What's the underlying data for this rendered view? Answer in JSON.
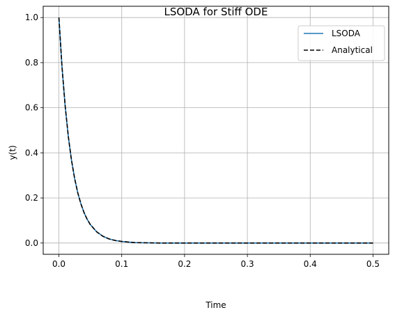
{
  "chart_data": {
    "type": "line",
    "title": "LSODA for Stiff ODE",
    "xlabel": "Time",
    "ylabel": "y(t)",
    "xlim": [
      -0.025,
      0.525
    ],
    "ylim": [
      -0.05,
      1.05
    ],
    "xticks": [
      0.0,
      0.1,
      0.2,
      0.3,
      0.4,
      0.5
    ],
    "xtick_labels": [
      "0.0",
      "0.1",
      "0.2",
      "0.3",
      "0.4",
      "0.5"
    ],
    "yticks": [
      0.0,
      0.2,
      0.4,
      0.6,
      0.8,
      1.0
    ],
    "ytick_labels": [
      "0.0",
      "0.2",
      "0.4",
      "0.6",
      "0.8",
      "1.0"
    ],
    "grid": true,
    "legend_position": "top-right",
    "series": [
      {
        "name": "LSODA",
        "color": "#1f77b4",
        "style": "solid",
        "x": [
          0.0,
          0.005,
          0.01,
          0.015,
          0.02,
          0.025,
          0.03,
          0.035,
          0.04,
          0.045,
          0.05,
          0.06,
          0.07,
          0.08,
          0.09,
          0.1,
          0.12,
          0.14,
          0.16,
          0.2,
          0.25,
          0.3,
          0.35,
          0.4,
          0.45,
          0.5
        ],
        "y": [
          1.0,
          0.779,
          0.607,
          0.472,
          0.368,
          0.287,
          0.223,
          0.174,
          0.135,
          0.105,
          0.082,
          0.05,
          0.03,
          0.018,
          0.011,
          0.007,
          0.002,
          0.001,
          0.0,
          0.0,
          0.0,
          0.0,
          0.0,
          0.0,
          0.0,
          0.0
        ]
      },
      {
        "name": "Analytical",
        "color": "#000000",
        "style": "dashed",
        "x": [
          0.0,
          0.005,
          0.01,
          0.015,
          0.02,
          0.025,
          0.03,
          0.035,
          0.04,
          0.045,
          0.05,
          0.06,
          0.07,
          0.08,
          0.09,
          0.1,
          0.12,
          0.14,
          0.16,
          0.2,
          0.25,
          0.3,
          0.35,
          0.4,
          0.45,
          0.5
        ],
        "y": [
          1.0,
          0.779,
          0.607,
          0.472,
          0.368,
          0.287,
          0.223,
          0.174,
          0.135,
          0.105,
          0.082,
          0.05,
          0.03,
          0.018,
          0.011,
          0.007,
          0.002,
          0.001,
          0.0,
          0.0,
          0.0,
          0.0,
          0.0,
          0.0,
          0.0,
          0.0
        ]
      }
    ]
  }
}
